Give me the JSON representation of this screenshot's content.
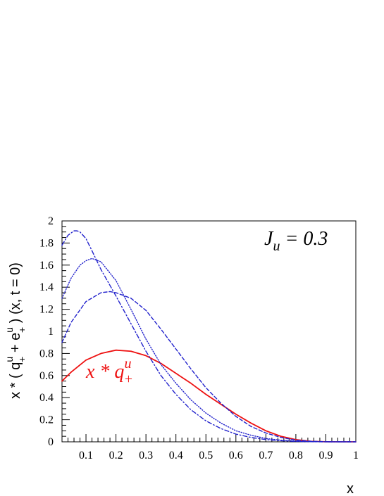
{
  "chart_data": {
    "type": "line",
    "title": "",
    "xlabel": "x",
    "ylabel": "x * ( q_+^u + e_+^u ) (x, t = 0)",
    "xlim": [
      0.02,
      1.0
    ],
    "ylim": [
      0,
      2
    ],
    "x_ticks": [
      "0.1",
      "0.2",
      "0.3",
      "0.4",
      "0.5",
      "0.6",
      "0.7",
      "0.8",
      "0.9",
      "1"
    ],
    "y_ticks": [
      "0",
      "0.2",
      "0.4",
      "0.6",
      "0.8",
      "1",
      "1.2",
      "1.4",
      "1.6",
      "1.8",
      "2"
    ],
    "grid": false,
    "annotations": {
      "ju": {
        "main": "J",
        "sub": "u",
        "rest": " = 0.3"
      },
      "series_label": {
        "main": "x * q",
        "sup": "u",
        "sub": "+",
        "color": "#ee1111"
      }
    },
    "series": [
      {
        "style": "solid",
        "color": "#ee1111",
        "x": [
          0.02,
          0.05,
          0.1,
          0.15,
          0.2,
          0.25,
          0.3,
          0.35,
          0.4,
          0.45,
          0.5,
          0.55,
          0.6,
          0.65,
          0.7,
          0.75,
          0.8,
          0.85,
          0.9,
          0.95,
          1.0
        ],
        "y": [
          0.55,
          0.63,
          0.74,
          0.8,
          0.83,
          0.82,
          0.78,
          0.71,
          0.62,
          0.53,
          0.43,
          0.34,
          0.25,
          0.17,
          0.1,
          0.05,
          0.02,
          0.005,
          0.001,
          0.0,
          0.0
        ]
      },
      {
        "style": "dashed",
        "color": "#2222cc",
        "x": [
          0.02,
          0.05,
          0.1,
          0.15,
          0.18,
          0.2,
          0.25,
          0.3,
          0.35,
          0.4,
          0.45,
          0.5,
          0.55,
          0.6,
          0.65,
          0.7,
          0.75,
          0.8,
          0.85,
          0.9,
          0.95,
          1.0
        ],
        "y": [
          0.9,
          1.08,
          1.27,
          1.35,
          1.36,
          1.35,
          1.3,
          1.19,
          1.02,
          0.84,
          0.66,
          0.49,
          0.35,
          0.23,
          0.14,
          0.08,
          0.04,
          0.015,
          0.005,
          0.001,
          0.0,
          0.0
        ]
      },
      {
        "style": "dotted",
        "color": "#2222cc",
        "x": [
          0.02,
          0.05,
          0.08,
          0.1,
          0.12,
          0.15,
          0.2,
          0.25,
          0.3,
          0.35,
          0.4,
          0.45,
          0.5,
          0.55,
          0.6,
          0.65,
          0.7,
          0.75,
          0.8,
          0.85,
          0.9,
          0.95,
          1.0
        ],
        "y": [
          1.3,
          1.48,
          1.6,
          1.64,
          1.66,
          1.63,
          1.46,
          1.2,
          0.93,
          0.7,
          0.53,
          0.38,
          0.26,
          0.17,
          0.1,
          0.06,
          0.03,
          0.015,
          0.006,
          0.002,
          0.0,
          0.0,
          0.0
        ]
      },
      {
        "style": "dashdot",
        "color": "#2222cc",
        "x": [
          0.02,
          0.04,
          0.06,
          0.07,
          0.08,
          0.1,
          0.12,
          0.15,
          0.2,
          0.25,
          0.3,
          0.35,
          0.4,
          0.45,
          0.5,
          0.55,
          0.6,
          0.65,
          0.7,
          0.75,
          0.8,
          0.85,
          0.9,
          1.0
        ],
        "y": [
          1.78,
          1.87,
          1.91,
          1.91,
          1.9,
          1.84,
          1.73,
          1.56,
          1.32,
          1.07,
          0.82,
          0.6,
          0.43,
          0.29,
          0.19,
          0.12,
          0.07,
          0.04,
          0.02,
          0.01,
          0.004,
          0.001,
          0.0,
          0.0
        ]
      }
    ]
  }
}
